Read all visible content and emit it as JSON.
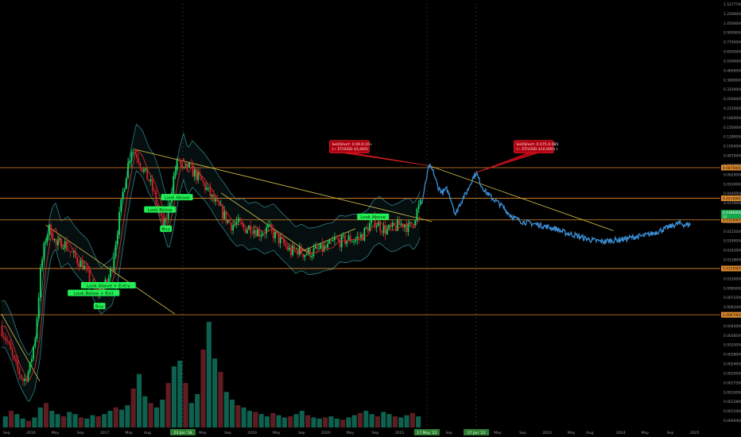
{
  "chart_data": {
    "type": "line",
    "title": "",
    "xlabel": "",
    "ylabel": "",
    "scale": "log",
    "grid": false,
    "colors": {
      "background": "#000000",
      "candle_up": "#16d65a",
      "candle_down": "#d6202a",
      "volume_up": "#0e6b56",
      "volume_down": "#6b1f27",
      "projection": "#3b8fd6",
      "trendline": "#d9c447",
      "horizontal_level": "#e08a2c",
      "band": "#2f7f86",
      "moving_average": "#c9302c",
      "signal_green": "#22ee55",
      "callout_red": "#b00010"
    },
    "y_ticks": [
      "1.52777000",
      "1.25000000",
      "1.05000000",
      "0.90000000",
      "0.77000000",
      "0.65000000",
      "0.55000000",
      "0.46000000",
      "0.38000000",
      "0.31000000",
      "0.25600000",
      "0.21500000",
      "0.18000000",
      "0.15000000",
      "0.12800000",
      "0.10500000",
      "0.08700000",
      "0.07300000",
      "0.06200000",
      "0.05200000",
      "0.04400000",
      "0.03700000",
      "0.03100000",
      "0.02650000",
      "0.02250000",
      "0.01900000",
      "0.01620000",
      "0.01380000",
      "0.01180000",
      "0.01000000",
      "0.00850000",
      "0.00725000",
      "0.00620000",
      "0.00530000",
      "0.00450000",
      "0.00385000",
      "0.00330000",
      "0.00280000",
      "0.00240000",
      "0.00205000",
      "0.00175000",
      "0.00150000",
      "0.00128000",
      "0.00110000",
      "0.00094000"
    ],
    "x_ticks": [
      {
        "label": "Sep",
        "t": 2015.67
      },
      {
        "label": "2016",
        "t": 2016.0
      },
      {
        "label": "May",
        "t": 2016.33
      },
      {
        "label": "Sep",
        "t": 2016.67
      },
      {
        "label": "2017",
        "t": 2017.0
      },
      {
        "label": "May",
        "t": 2017.33
      },
      {
        "label": "Aug",
        "t": 2017.58
      },
      {
        "label": "23 Jan '18",
        "t": 2018.06,
        "highlight": true
      },
      {
        "label": "May",
        "t": 2018.33
      },
      {
        "label": "Sep",
        "t": 2018.67
      },
      {
        "label": "2019",
        "t": 2019.0
      },
      {
        "label": "May",
        "t": 2019.33
      },
      {
        "label": "Sep",
        "t": 2019.67
      },
      {
        "label": "2020",
        "t": 2020.0
      },
      {
        "label": "May",
        "t": 2020.33
      },
      {
        "label": "Sep",
        "t": 2020.67
      },
      {
        "label": "2021",
        "t": 2021.0
      },
      {
        "label": "17 May '21",
        "t": 2021.37,
        "highlight": true
      },
      {
        "label": "Sep",
        "t": 2021.67
      },
      {
        "label": "17 Jan '22",
        "t": 2022.04,
        "highlight": true
      },
      {
        "label": "May",
        "t": 2022.33
      },
      {
        "label": "Sep",
        "t": 2022.67
      },
      {
        "label": "2023",
        "t": 2023.0
      },
      {
        "label": "May",
        "t": 2023.33
      },
      {
        "label": "Aug",
        "t": 2023.58
      },
      {
        "label": "2024",
        "t": 2024.0
      },
      {
        "label": "May",
        "t": 2024.33
      },
      {
        "label": "Sep",
        "t": 2024.67
      },
      {
        "label": "2025",
        "t": 2025.0
      }
    ],
    "price_anchors": [
      [
        2015.6,
        0.0055
      ],
      [
        2015.68,
        0.0044
      ],
      [
        2015.8,
        0.0028
      ],
      [
        2015.92,
        0.0021
      ],
      [
        2016.0,
        0.0026
      ],
      [
        2016.08,
        0.0048
      ],
      [
        2016.15,
        0.015
      ],
      [
        2016.22,
        0.026
      ],
      [
        2016.28,
        0.031
      ],
      [
        2016.36,
        0.022
      ],
      [
        2016.45,
        0.024
      ],
      [
        2016.55,
        0.02
      ],
      [
        2016.62,
        0.018
      ],
      [
        2016.72,
        0.016
      ],
      [
        2016.82,
        0.012
      ],
      [
        2016.9,
        0.0098
      ],
      [
        2016.96,
        0.0105
      ],
      [
        2017.05,
        0.0115
      ],
      [
        2017.12,
        0.016
      ],
      [
        2017.2,
        0.032
      ],
      [
        2017.26,
        0.055
      ],
      [
        2017.32,
        0.085
      ],
      [
        2017.38,
        0.12
      ],
      [
        2017.46,
        0.108
      ],
      [
        2017.55,
        0.08
      ],
      [
        2017.62,
        0.07
      ],
      [
        2017.7,
        0.052
      ],
      [
        2017.76,
        0.038
      ],
      [
        2017.82,
        0.03
      ],
      [
        2017.88,
        0.042
      ],
      [
        2017.96,
        0.078
      ],
      [
        2018.02,
        0.102
      ],
      [
        2018.08,
        0.078
      ],
      [
        2018.14,
        0.09
      ],
      [
        2018.22,
        0.08
      ],
      [
        2018.3,
        0.072
      ],
      [
        2018.4,
        0.06
      ],
      [
        2018.5,
        0.048
      ],
      [
        2018.58,
        0.042
      ],
      [
        2018.66,
        0.036
      ],
      [
        2018.74,
        0.032
      ],
      [
        2018.82,
        0.033
      ],
      [
        2018.9,
        0.03
      ],
      [
        2019.0,
        0.031
      ],
      [
        2019.12,
        0.028
      ],
      [
        2019.24,
        0.03
      ],
      [
        2019.34,
        0.026
      ],
      [
        2019.44,
        0.023
      ],
      [
        2019.54,
        0.02
      ],
      [
        2019.62,
        0.021
      ],
      [
        2019.72,
        0.0195
      ],
      [
        2019.84,
        0.02
      ],
      [
        2019.94,
        0.021
      ],
      [
        2020.04,
        0.0215
      ],
      [
        2020.14,
        0.0245
      ],
      [
        2020.22,
        0.024
      ],
      [
        2020.32,
        0.025
      ],
      [
        2020.42,
        0.0248
      ],
      [
        2020.52,
        0.027
      ],
      [
        2020.6,
        0.032
      ],
      [
        2020.68,
        0.034
      ],
      [
        2020.76,
        0.031
      ],
      [
        2020.84,
        0.029
      ],
      [
        2020.92,
        0.03
      ],
      [
        2021.0,
        0.032
      ],
      [
        2021.08,
        0.033
      ],
      [
        2021.14,
        0.03
      ],
      [
        2021.2,
        0.034
      ],
      [
        2021.26,
        0.042
      ],
      [
        2021.3,
        0.046
      ]
    ],
    "projection_anchors": [
      [
        2021.3,
        0.046
      ],
      [
        2021.36,
        0.07
      ],
      [
        2021.4,
        0.09
      ],
      [
        2021.46,
        0.08
      ],
      [
        2021.52,
        0.062
      ],
      [
        2021.58,
        0.056
      ],
      [
        2021.64,
        0.06
      ],
      [
        2021.7,
        0.05
      ],
      [
        2021.76,
        0.038
      ],
      [
        2021.8,
        0.044
      ],
      [
        2021.86,
        0.051
      ],
      [
        2021.92,
        0.058
      ],
      [
        2021.98,
        0.07
      ],
      [
        2022.04,
        0.08
      ],
      [
        2022.1,
        0.065
      ],
      [
        2022.16,
        0.058
      ],
      [
        2022.24,
        0.052
      ],
      [
        2022.32,
        0.048
      ],
      [
        2022.4,
        0.044
      ],
      [
        2022.48,
        0.039
      ],
      [
        2022.56,
        0.036
      ],
      [
        2022.66,
        0.034
      ],
      [
        2022.78,
        0.033
      ],
      [
        2022.9,
        0.032
      ],
      [
        2023.0,
        0.031
      ],
      [
        2023.12,
        0.03
      ],
      [
        2023.24,
        0.028
      ],
      [
        2023.36,
        0.027
      ],
      [
        2023.5,
        0.0255
      ],
      [
        2023.62,
        0.0245
      ],
      [
        2023.76,
        0.024
      ],
      [
        2023.9,
        0.0245
      ],
      [
        2024.04,
        0.025
      ],
      [
        2024.18,
        0.026
      ],
      [
        2024.32,
        0.0265
      ],
      [
        2024.46,
        0.028
      ],
      [
        2024.6,
        0.03
      ],
      [
        2024.72,
        0.032
      ],
      [
        2024.8,
        0.033
      ],
      [
        2024.88,
        0.032
      ],
      [
        2024.94,
        0.0325
      ]
    ],
    "horizontal_levels": [
      {
        "price": 0.087,
        "label": "0.08700000"
      },
      {
        "price": 0.051,
        "label": "0.05100000"
      },
      {
        "price": 0.035,
        "label": "0.03500000"
      },
      {
        "price": 0.015,
        "label": "0.01500000"
      },
      {
        "price": 0.0067,
        "label": "0.00670000"
      }
    ],
    "current_price": {
      "price": 0.0386,
      "label": "0.03860000",
      "sub": "1d"
    },
    "trendlines": [
      [
        [
          2015.6,
          0.0068
        ],
        [
          2016.12,
          0.0021
        ]
      ],
      [
        [
          2016.2,
          0.032
        ],
        [
          2017.95,
          0.0068
        ]
      ],
      [
        [
          2017.4,
          0.12
        ],
        [
          2021.44,
          0.034
        ]
      ],
      [
        [
          2018.58,
          0.056
        ],
        [
          2019.78,
          0.0195
        ]
      ],
      [
        [
          2019.6,
          0.0195
        ],
        [
          2020.4,
          0.03
        ]
      ],
      [
        [
          2021.4,
          0.09
        ],
        [
          2023.9,
          0.029
        ]
      ]
    ],
    "vertical_markers": [
      2018.06,
      2021.37,
      2022.04
    ],
    "signals": [
      {
        "t": 2016.93,
        "price": 0.0078,
        "text": "Buy"
      },
      {
        "t": 2016.85,
        "price": 0.0098,
        "text": "Look Below + Exit"
      },
      {
        "t": 2017.05,
        "price": 0.0112,
        "text": "Look Above + Entry"
      },
      {
        "t": 2017.83,
        "price": 0.03,
        "text": "Buy"
      },
      {
        "t": 2017.75,
        "price": 0.042,
        "text": "Look Below"
      },
      {
        "t": 2017.98,
        "price": 0.052,
        "text": "Look Above"
      },
      {
        "t": 2020.64,
        "price": 0.037,
        "text": "Look Above"
      }
    ],
    "callouts": [
      {
        "anchor_t": 2021.4,
        "anchor_price": 0.09,
        "box_t": 2020.05,
        "lines": [
          "Sell/Short: 0.09-0.10+",
          "(~ ETHUSD $5,000)"
        ]
      },
      {
        "anchor_t": 2022.04,
        "anchor_price": 0.08,
        "box_t": 2022.55,
        "lines": [
          "Sell/Short: 0.075-0.085",
          "(~ ETHUSD $10,000+)"
        ]
      }
    ],
    "volume": {
      "values": [
        0.1,
        0.15,
        0.12,
        0.08,
        0.06,
        0.09,
        0.18,
        0.22,
        0.15,
        0.12,
        0.1,
        0.14,
        0.12,
        0.09,
        0.08,
        0.11,
        0.1,
        0.12,
        0.15,
        0.18,
        0.16,
        0.2,
        0.35,
        0.48,
        0.28,
        0.22,
        0.18,
        0.25,
        0.4,
        0.55,
        0.6,
        0.4,
        0.22,
        0.3,
        0.7,
        0.95,
        0.62,
        0.5,
        0.32,
        0.25,
        0.2,
        0.18,
        0.15,
        0.14,
        0.12,
        0.1,
        0.13,
        0.11,
        0.09,
        0.1,
        0.12,
        0.15,
        0.11,
        0.09,
        0.08,
        0.09,
        0.1,
        0.08,
        0.07,
        0.09,
        0.11,
        0.13,
        0.15,
        0.12,
        0.1,
        0.14,
        0.12,
        0.1,
        0.09,
        0.11,
        0.13,
        0.1
      ]
    },
    "ylim": [
      0.00094,
      1.52777
    ],
    "xlim": [
      2015.58,
      2025.35
    ]
  }
}
